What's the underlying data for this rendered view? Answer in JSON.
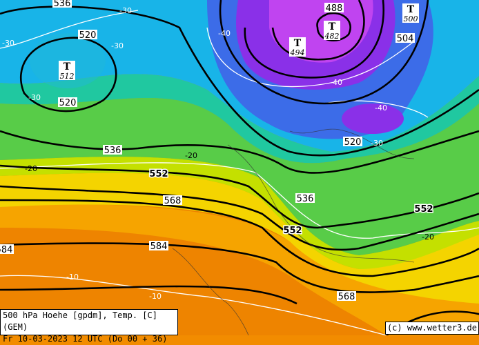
{
  "map": {
    "legend_line1": "500 hPa Hoehe [gpdm], Temp. [C] (GEM)",
    "legend_line2": "Fr 10-03-2023 12 UTC (Do 00 + 36)",
    "credit": "(c) www.wetter3.de",
    "height_labels": [
      "536",
      "520",
      "520",
      "536",
      "552",
      "568",
      "584",
      "584",
      "536",
      "552",
      "552",
      "568",
      "488",
      "504",
      "520"
    ],
    "temp_labels": [
      "-30",
      "-30",
      "-30",
      "-30",
      "-40",
      "-40",
      "-40",
      "-30",
      "-20",
      "-20",
      "-20",
      "-10",
      "-10"
    ],
    "lows": [
      {
        "mark": "T",
        "value": "512"
      },
      {
        "mark": "T",
        "value": "494"
      },
      {
        "mark": "T",
        "value": "482"
      },
      {
        "mark": "T",
        "value": "500"
      }
    ],
    "colors": {
      "deep_orange": "#ee8400",
      "orange": "#f6a400",
      "yellow": "#f4d400",
      "yellow_green": "#c4e000",
      "green": "#58cc48",
      "teal": "#20c8a0",
      "cyan": "#18b4e8",
      "blue": "#3c6ce8",
      "purple": "#8a30e8",
      "magenta": "#c044f0"
    }
  }
}
